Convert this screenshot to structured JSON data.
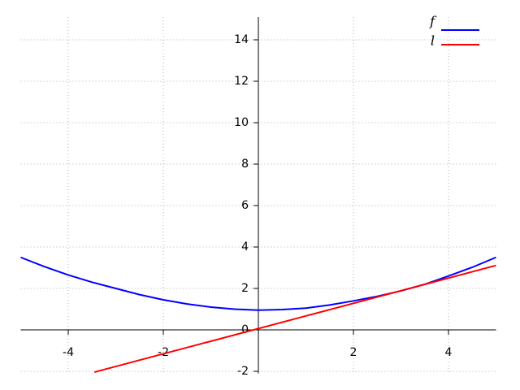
{
  "chart_data": {
    "type": "line",
    "xlim": [
      -5,
      5
    ],
    "ylim": [
      -2.1,
      15.1
    ],
    "xticks": [
      -4,
      -2,
      2,
      4
    ],
    "yticks": [
      -2,
      0,
      2,
      4,
      6,
      8,
      10,
      12,
      14
    ],
    "grid": true,
    "legend": "upper right",
    "series": [
      {
        "name": "f",
        "color": "#0000ff",
        "x": [
          -5,
          -4.5,
          -4,
          -3.5,
          -3,
          -2.5,
          -2,
          -1.5,
          -1,
          -0.5,
          0,
          0.5,
          1,
          1.5,
          2,
          2.5,
          3,
          3.5,
          4,
          4.5,
          5
        ],
        "values": [
          3.5,
          3.05,
          2.65,
          2.3,
          2.0,
          1.7,
          1.45,
          1.25,
          1.1,
          1.0,
          0.95,
          0.98,
          1.05,
          1.2,
          1.4,
          1.62,
          1.88,
          2.2,
          2.6,
          3.02,
          3.5
        ]
      },
      {
        "name": "l",
        "color": "#ff0000",
        "x": [
          -3.45,
          5
        ],
        "values": [
          -2.04,
          3.11
        ]
      }
    ]
  }
}
